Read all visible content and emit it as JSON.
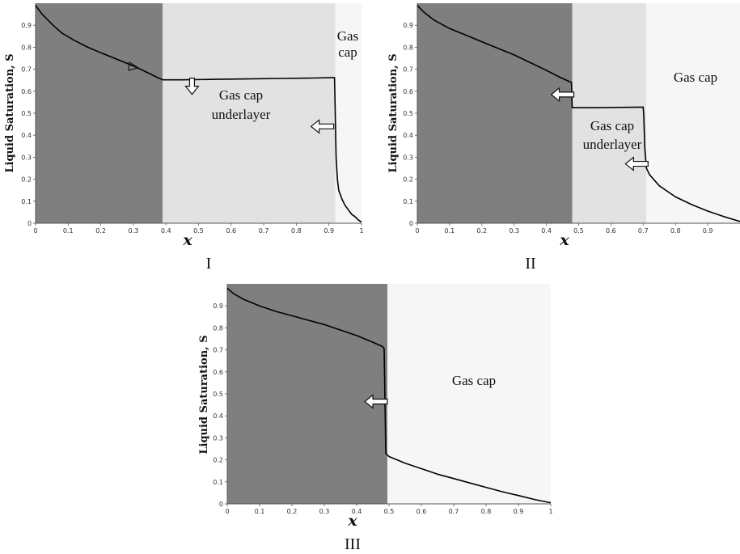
{
  "chart_data": [
    {
      "type": "line",
      "panel_label": "I",
      "xlabel": "x",
      "ylabel": "Liquid Saturation, S",
      "xlim": [
        0,
        1
      ],
      "ylim": [
        0,
        1
      ],
      "xticks": [
        "0",
        "0.1",
        "0.2",
        "0.3",
        "0.4",
        "0.5",
        "0.6",
        "0.7",
        "0.8",
        "0.9",
        "1"
      ],
      "yticks": [
        "0",
        "0.1",
        "0.2",
        "0.3",
        "0.4",
        "0.5",
        "0.6",
        "0.7",
        "0.8",
        "0.9"
      ],
      "regions": [
        {
          "label": "",
          "x": [
            0,
            0.39
          ],
          "color": "#7f7f7f"
        },
        {
          "label": "Gas cap underlayer",
          "x": [
            0.39,
            0.92
          ],
          "color": "#e2e2e2"
        },
        {
          "label": "Gas cap",
          "x": [
            0.92,
            1
          ],
          "color": "#f6f6f6"
        }
      ],
      "series": [
        {
          "x": [
            0.0,
            0.02,
            0.05,
            0.08,
            0.12,
            0.16,
            0.2,
            0.25,
            0.3,
            0.35,
            0.37,
            0.39,
            0.45,
            0.55,
            0.65,
            0.75,
            0.85,
            0.91,
            0.917,
            0.918,
            0.92,
            0.922,
            0.926,
            0.93,
            0.94,
            0.95,
            0.96,
            0.97,
            0.98,
            0.99,
            1.0
          ],
          "y": [
            0.99,
            0.95,
            0.905,
            0.865,
            0.83,
            0.8,
            0.775,
            0.745,
            0.715,
            0.68,
            0.665,
            0.652,
            0.652,
            0.654,
            0.656,
            0.658,
            0.66,
            0.662,
            0.662,
            0.6,
            0.45,
            0.3,
            0.2,
            0.15,
            0.11,
            0.08,
            0.06,
            0.04,
            0.03,
            0.015,
            0.005
          ]
        }
      ],
      "arrows": [
        {
          "x": 0.3,
          "y": 0.71,
          "direction": "along-curve"
        },
        {
          "x": 0.48,
          "y": 0.63,
          "direction": "down"
        },
        {
          "x": 0.88,
          "y": 0.44,
          "direction": "left"
        }
      ]
    },
    {
      "type": "line",
      "panel_label": "II",
      "xlabel": "x",
      "ylabel": "Liquid Saturation, S",
      "xlim": [
        0,
        1
      ],
      "ylim": [
        0,
        1
      ],
      "xticks": [
        "0",
        "0.1",
        "0.2",
        "0.3",
        "0.4",
        "0.5",
        "0.6",
        "0.7",
        "0.8",
        "0.9"
      ],
      "yticks": [
        "0",
        "0.1",
        "0.2",
        "0.3",
        "0.4",
        "0.5",
        "0.6",
        "0.7",
        "0.8",
        "0.9"
      ],
      "regions": [
        {
          "label": "",
          "x": [
            0,
            0.48
          ],
          "color": "#7f7f7f"
        },
        {
          "label": "Gas cap underlayer",
          "x": [
            0.48,
            0.71
          ],
          "color": "#e2e2e2"
        },
        {
          "label": "Gas cap",
          "x": [
            0.71,
            1
          ],
          "color": "#f6f6f6"
        }
      ],
      "series": [
        {
          "x": [
            0.0,
            0.02,
            0.05,
            0.1,
            0.15,
            0.2,
            0.25,
            0.3,
            0.35,
            0.4,
            0.44,
            0.47,
            0.478,
            0.48,
            0.49,
            0.55,
            0.6,
            0.65,
            0.7,
            0.702,
            0.705,
            0.71,
            0.72,
            0.75,
            0.8,
            0.85,
            0.9,
            0.95,
            1.0
          ],
          "y": [
            0.99,
            0.96,
            0.925,
            0.885,
            0.855,
            0.825,
            0.795,
            0.765,
            0.73,
            0.695,
            0.665,
            0.645,
            0.64,
            0.525,
            0.525,
            0.525,
            0.526,
            0.527,
            0.528,
            0.48,
            0.34,
            0.25,
            0.22,
            0.17,
            0.12,
            0.085,
            0.055,
            0.03,
            0.008
          ]
        }
      ],
      "arrows": [
        {
          "x": 0.45,
          "y": 0.585,
          "direction": "left"
        },
        {
          "x": 0.68,
          "y": 0.27,
          "direction": "left"
        }
      ]
    },
    {
      "type": "line",
      "panel_label": "III",
      "xlabel": "x",
      "ylabel": "Liquid Saturation, S",
      "xlim": [
        0,
        1
      ],
      "ylim": [
        0,
        1
      ],
      "xticks": [
        "0",
        "0.1",
        "0.2",
        "0.3",
        "0.4",
        "0.5",
        "0.6",
        "0.7",
        "0.8",
        "0.9",
        "1"
      ],
      "yticks": [
        "0",
        "0.1",
        "0.2",
        "0.3",
        "0.4",
        "0.5",
        "0.6",
        "0.7",
        "0.8",
        "0.9"
      ],
      "regions": [
        {
          "label": "",
          "x": [
            0,
            0.495
          ],
          "color": "#7f7f7f"
        },
        {
          "label": "Gas cap",
          "x": [
            0.495,
            1
          ],
          "color": "#f6f6f6"
        }
      ],
      "series": [
        {
          "x": [
            0.0,
            0.02,
            0.05,
            0.1,
            0.15,
            0.2,
            0.25,
            0.3,
            0.35,
            0.4,
            0.45,
            0.48,
            0.485,
            0.49,
            0.5,
            0.55,
            0.6,
            0.65,
            0.7,
            0.75,
            0.8,
            0.85,
            0.9,
            0.95,
            1.0
          ],
          "y": [
            0.98,
            0.955,
            0.93,
            0.9,
            0.875,
            0.855,
            0.835,
            0.815,
            0.79,
            0.765,
            0.735,
            0.715,
            0.705,
            0.23,
            0.215,
            0.185,
            0.16,
            0.135,
            0.115,
            0.095,
            0.075,
            0.055,
            0.038,
            0.02,
            0.005
          ]
        }
      ],
      "arrows": [
        {
          "x": 0.46,
          "y": 0.465,
          "direction": "left"
        }
      ]
    }
  ]
}
